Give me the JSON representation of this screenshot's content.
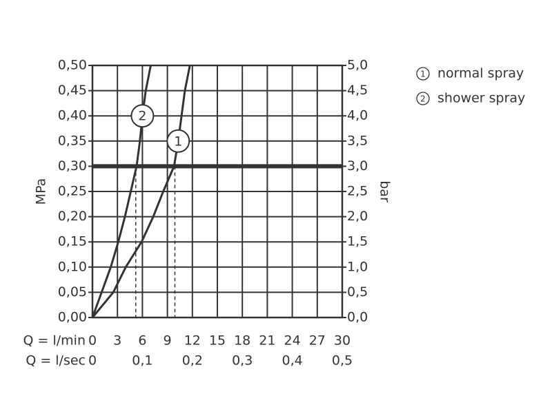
{
  "chart_data": {
    "type": "line",
    "xlabel": "Q = l/min",
    "x2label": "Q = l/sec",
    "ylabel": "MPa",
    "y2label": "bar",
    "xlim": [
      0,
      30
    ],
    "xticks": [
      0,
      3,
      6,
      9,
      12,
      15,
      18,
      21,
      24,
      27,
      30
    ],
    "x2lim": [
      0,
      0.5
    ],
    "x2ticks": [
      0,
      {
        "value": 0.1,
        "label": "0,1"
      },
      {
        "value": 0.2,
        "label": "0,2"
      },
      {
        "value": 0.3,
        "label": "0,3"
      },
      {
        "value": 0.4,
        "label": "0,4"
      },
      {
        "value": 0.5,
        "label": "0,5"
      }
    ],
    "ylim": [
      0,
      0.5
    ],
    "yticks": [
      {
        "value": 0,
        "label": "0,00"
      },
      {
        "value": 0.05,
        "label": "0,05"
      },
      {
        "value": 0.1,
        "label": "0,10"
      },
      {
        "value": 0.15,
        "label": "0,15"
      },
      {
        "value": 0.2,
        "label": "0,20"
      },
      {
        "value": 0.25,
        "label": "0,25"
      },
      {
        "value": 0.3,
        "label": "0,30"
      },
      {
        "value": 0.35,
        "label": "0,35"
      },
      {
        "value": 0.4,
        "label": "0,40"
      },
      {
        "value": 0.45,
        "label": "0,45"
      },
      {
        "value": 0.5,
        "label": "0,50"
      }
    ],
    "y2lim": [
      0,
      5
    ],
    "y2ticks": [
      {
        "value": 0,
        "label": "0,0"
      },
      {
        "value": 0.5,
        "label": "0,5"
      },
      {
        "value": 1,
        "label": "1,0"
      },
      {
        "value": 1.5,
        "label": "1,5"
      },
      {
        "value": 2,
        "label": "2,0"
      },
      {
        "value": 2.5,
        "label": "2,5"
      },
      {
        "value": 3,
        "label": "3,0"
      },
      {
        "value": 3.5,
        "label": "3,5"
      },
      {
        "value": 4,
        "label": "4,0"
      },
      {
        "value": 4.5,
        "label": "4,5"
      },
      {
        "value": 5,
        "label": "5,0"
      }
    ],
    "grid": true,
    "hline": 0.3,
    "vlines": [
      5.2,
      9.9
    ],
    "series": [
      {
        "name": "normal spray",
        "label": "1",
        "color": "#333333",
        "x": [
          0,
          2.5,
          4.0,
          5.9,
          7.3,
          8.5,
          9.8,
          10.3,
          10.7,
          11.1,
          11.7
        ],
        "values": [
          0,
          0.05,
          0.1,
          0.15,
          0.2,
          0.25,
          0.3,
          0.35,
          0.4,
          0.45,
          0.5
        ]
      },
      {
        "name": "shower spray",
        "label": "2",
        "color": "#333333",
        "x": [
          0,
          1.1,
          2.2,
          3.1,
          3.9,
          4.6,
          5.3,
          5.7,
          6.0,
          6.4,
          7.0
        ],
        "values": [
          0,
          0.05,
          0.1,
          0.15,
          0.2,
          0.25,
          0.3,
          0.35,
          0.4,
          0.45,
          0.5
        ]
      }
    ]
  }
}
